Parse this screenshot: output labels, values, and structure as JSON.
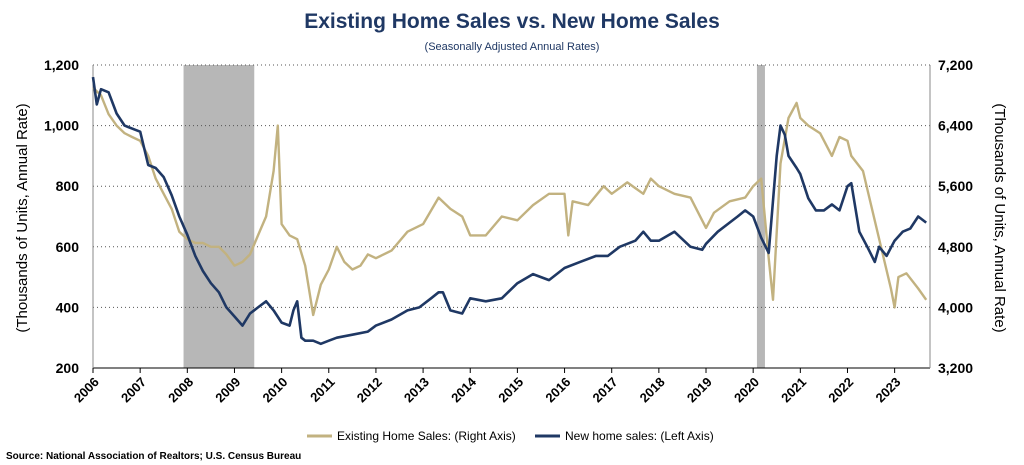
{
  "chart_data": {
    "type": "line",
    "title": "Existing Home Sales vs. New Home Sales",
    "subtitle": "(Seasonally Adjusted Annual Rates)",
    "ylabel_left": "(Thousands of Units, Annual Rate)",
    "ylabel_right": "(Thousands of Units, Annual Rate)",
    "ylim_left": [
      200,
      1200
    ],
    "ylim_right": [
      3200,
      7200
    ],
    "yticks_left": [
      200,
      400,
      600,
      800,
      1000,
      1200
    ],
    "yticks_right": [
      3200,
      4000,
      4800,
      5600,
      6400,
      7200
    ],
    "ytick_labels_left": [
      "200",
      "400",
      "600",
      "800",
      "1,000",
      "1,200"
    ],
    "ytick_labels_right": [
      "3,200",
      "4,000",
      "4,800",
      "5,600",
      "6,400",
      "7,200"
    ],
    "xlim": [
      2006.0,
      2023.75
    ],
    "xtick_labels": [
      "2006",
      "2007",
      "2008",
      "2009",
      "2010",
      "2011",
      "2012",
      "2013",
      "2014",
      "2015",
      "2016",
      "2017",
      "2018",
      "2019",
      "2020",
      "2021",
      "2022",
      "2023"
    ],
    "grid": "horizontal dotted",
    "recessions": [
      [
        2007.92,
        2009.42
      ],
      [
        2020.08,
        2020.25
      ]
    ],
    "series": [
      {
        "name": "Existing Home Sales: (Right Axis)",
        "axis": "right",
        "color": "#c2b280",
        "x": [
          2006.0,
          2006.17,
          2006.33,
          2006.5,
          2006.67,
          2006.83,
          2007.0,
          2007.17,
          2007.33,
          2007.5,
          2007.67,
          2007.83,
          2008.0,
          2008.17,
          2008.33,
          2008.5,
          2008.67,
          2008.83,
          2009.0,
          2009.17,
          2009.33,
          2009.5,
          2009.67,
          2009.83,
          2009.92,
          2010.0,
          2010.17,
          2010.33,
          2010.5,
          2010.67,
          2010.83,
          2011.0,
          2011.17,
          2011.33,
          2011.5,
          2011.67,
          2011.83,
          2012.0,
          2012.33,
          2012.67,
          2013.0,
          2013.33,
          2013.58,
          2013.83,
          2014.0,
          2014.33,
          2014.67,
          2015.0,
          2015.33,
          2015.67,
          2016.0,
          2016.08,
          2016.17,
          2016.5,
          2016.83,
          2017.0,
          2017.33,
          2017.67,
          2017.83,
          2018.0,
          2018.33,
          2018.67,
          2019.0,
          2019.17,
          2019.5,
          2019.83,
          2020.0,
          2020.17,
          2020.33,
          2020.42,
          2020.58,
          2020.75,
          2020.92,
          2021.0,
          2021.17,
          2021.42,
          2021.67,
          2021.83,
          2022.0,
          2022.08,
          2022.33,
          2022.5,
          2022.75,
          2022.92,
          2023.0,
          2023.08,
          2023.25,
          2023.5,
          2023.67
        ],
        "values": [
          6900,
          6800,
          6550,
          6400,
          6300,
          6250,
          6200,
          6000,
          5700,
          5500,
          5300,
          5000,
          4900,
          4850,
          4850,
          4800,
          4800,
          4700,
          4550,
          4600,
          4700,
          4950,
          5200,
          5800,
          6400,
          5100,
          4950,
          4900,
          4550,
          3900,
          4300,
          4500,
          4800,
          4600,
          4500,
          4550,
          4700,
          4650,
          4750,
          5000,
          5100,
          5450,
          5300,
          5200,
          4950,
          4950,
          5200,
          5150,
          5350,
          5500,
          5500,
          4950,
          5400,
          5350,
          5600,
          5500,
          5650,
          5500,
          5700,
          5600,
          5500,
          5450,
          5050,
          5250,
          5400,
          5450,
          5600,
          5700,
          4650,
          4100,
          5900,
          6500,
          6700,
          6500,
          6400,
          6300,
          6000,
          6250,
          6200,
          6000,
          5800,
          5350,
          4700,
          4250,
          4000,
          4400,
          4450,
          4250,
          4100
        ]
      },
      {
        "name": "New home sales: (Left Axis)",
        "axis": "left",
        "color": "#1f3864",
        "x": [
          2006.0,
          2006.08,
          2006.17,
          2006.33,
          2006.5,
          2006.67,
          2006.83,
          2007.0,
          2007.17,
          2007.33,
          2007.5,
          2007.67,
          2007.83,
          2008.0,
          2008.17,
          2008.33,
          2008.5,
          2008.67,
          2008.83,
          2009.0,
          2009.17,
          2009.33,
          2009.5,
          2009.67,
          2009.83,
          2010.0,
          2010.17,
          2010.25,
          2010.33,
          2010.42,
          2010.5,
          2010.67,
          2010.83,
          2011.0,
          2011.17,
          2011.5,
          2011.83,
          2012.0,
          2012.33,
          2012.67,
          2012.92,
          2013.17,
          2013.33,
          2013.42,
          2013.58,
          2013.83,
          2014.0,
          2014.33,
          2014.67,
          2015.0,
          2015.33,
          2015.67,
          2016.0,
          2016.33,
          2016.67,
          2016.92,
          2017.17,
          2017.5,
          2017.67,
          2017.83,
          2018.0,
          2018.33,
          2018.67,
          2018.92,
          2019.0,
          2019.25,
          2019.5,
          2019.67,
          2019.83,
          2020.0,
          2020.17,
          2020.33,
          2020.5,
          2020.58,
          2020.67,
          2020.75,
          2020.92,
          2021.0,
          2021.17,
          2021.33,
          2021.5,
          2021.67,
          2021.83,
          2022.0,
          2022.08,
          2022.25,
          2022.42,
          2022.58,
          2022.67,
          2022.83,
          2023.0,
          2023.17,
          2023.33,
          2023.5,
          2023.67
        ],
        "values": [
          1160,
          1070,
          1120,
          1110,
          1040,
          1000,
          990,
          980,
          870,
          860,
          830,
          770,
          700,
          640,
          570,
          520,
          480,
          450,
          400,
          370,
          340,
          380,
          400,
          420,
          390,
          350,
          340,
          390,
          420,
          300,
          290,
          290,
          280,
          290,
          300,
          310,
          320,
          340,
          360,
          390,
          400,
          430,
          450,
          450,
          390,
          380,
          430,
          420,
          430,
          480,
          510,
          490,
          530,
          550,
          570,
          570,
          600,
          620,
          650,
          620,
          620,
          650,
          600,
          590,
          610,
          650,
          680,
          700,
          720,
          700,
          630,
          580,
          900,
          1000,
          970,
          900,
          860,
          840,
          760,
          720,
          720,
          740,
          720,
          800,
          810,
          650,
          600,
          550,
          600,
          570,
          620,
          650,
          660,
          700,
          680
        ]
      }
    ]
  },
  "legend": {
    "existing_label": "Existing Home Sales: (Right Axis)",
    "new_label": "New home sales: (Left Axis)"
  },
  "source": "Source: National Association of Realtors; U.S. Census Bureau",
  "colors": {
    "existing": "#c2b280",
    "new": "#1f3864",
    "recession": "#b7b7b7",
    "title": "#1f3864"
  }
}
